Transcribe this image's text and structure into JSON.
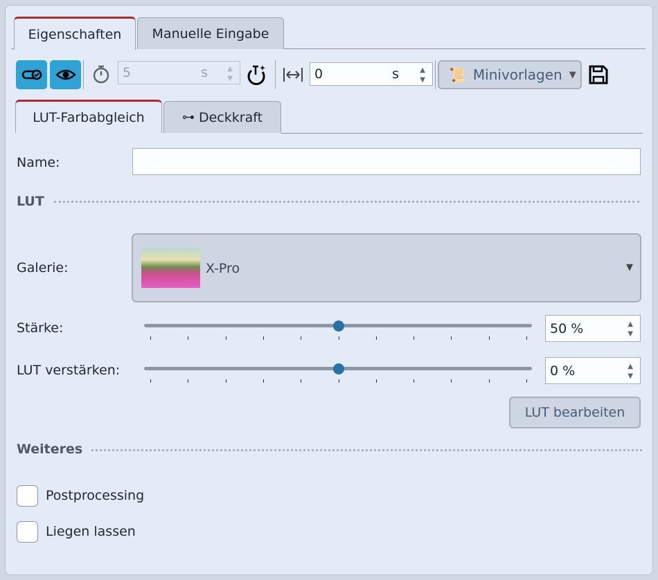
{
  "tabs": [
    {
      "label": "Eigenschaften",
      "active": true
    },
    {
      "label": "Manuelle Eingabe",
      "active": false
    }
  ],
  "toolbar": {
    "duration_value": "5",
    "duration_unit": "s",
    "offset_value": "0",
    "offset_unit": "s",
    "templates_label": "Minivorlagen",
    "accent": "#2fa2d6"
  },
  "subtabs": [
    {
      "label": "LUT-Farbabgleich",
      "active": true
    },
    {
      "label": "Deckkraft",
      "active": false
    }
  ],
  "name": {
    "label": "Name:",
    "value": ""
  },
  "lut": {
    "section": "LUT",
    "gallery_label": "Galerie:",
    "gallery_value": "X-Pro",
    "strength_label": "Stärke:",
    "strength_value": "50 %",
    "strength_percent": 50,
    "boost_label": "LUT verstärken:",
    "boost_value": "0 %",
    "boost_percent": 50,
    "edit_button": "LUT bearbeiten"
  },
  "more": {
    "section": "Weiteres",
    "options": [
      {
        "label": "Postprocessing",
        "checked": false
      },
      {
        "label": "Liegen lassen",
        "checked": false
      }
    ]
  }
}
